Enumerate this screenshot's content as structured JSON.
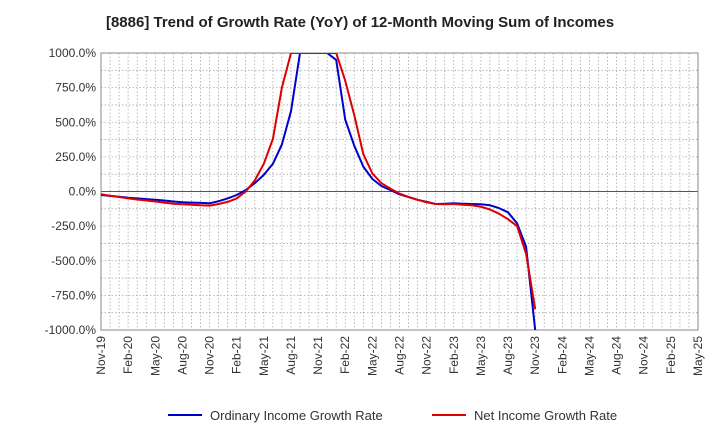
{
  "chart_data": {
    "type": "line",
    "title": "[8886]  Trend of Growth Rate (YoY) of 12-Month Moving Sum of Incomes",
    "xlabel": "",
    "ylabel": "",
    "ylim": [
      -1000,
      1000
    ],
    "yticks": [
      1000,
      750,
      500,
      250,
      0,
      -250,
      -500,
      -750,
      -1000
    ],
    "ytick_labels": [
      "1000.0%",
      "750.0%",
      "500.0%",
      "250.0%",
      "0.0%",
      "-250.0%",
      "-500.0%",
      "-750.0%",
      "-1000.0%"
    ],
    "x_tick_labels": [
      "Nov-19",
      "Feb-20",
      "May-20",
      "Aug-20",
      "Nov-20",
      "Feb-21",
      "May-21",
      "Aug-21",
      "Nov-21",
      "Feb-22",
      "May-22",
      "Aug-22",
      "Nov-22",
      "Feb-23",
      "May-23",
      "Aug-23",
      "Nov-23",
      "Feb-24",
      "May-24",
      "Aug-24",
      "Nov-24",
      "Feb-25",
      "May-25"
    ],
    "x_start": "Nov-19",
    "x_months": 66,
    "grid": true,
    "legend_position": "bottom",
    "series": [
      {
        "name": "Ordinary Income Growth Rate",
        "color": "#0000cc",
        "points": [
          [
            "Nov-19",
            -25
          ],
          [
            "Dec-19",
            -32
          ],
          [
            "Jan-20",
            -38
          ],
          [
            "Feb-20",
            -45
          ],
          [
            "Mar-20",
            -50
          ],
          [
            "Apr-20",
            -55
          ],
          [
            "May-20",
            -60
          ],
          [
            "Jun-20",
            -65
          ],
          [
            "Jul-20",
            -72
          ],
          [
            "Aug-20",
            -78
          ],
          [
            "Sep-20",
            -80
          ],
          [
            "Oct-20",
            -82
          ],
          [
            "Nov-20",
            -85
          ],
          [
            "Dec-20",
            -70
          ],
          [
            "Jan-21",
            -50
          ],
          [
            "Feb-21",
            -25
          ],
          [
            "Mar-21",
            10
          ],
          [
            "Apr-21",
            60
          ],
          [
            "May-21",
            120
          ],
          [
            "Jun-21",
            200
          ],
          [
            "Jul-21",
            340
          ],
          [
            "Aug-21",
            580
          ],
          [
            "Sep-21",
            1000
          ],
          [
            "Dec-21",
            1000
          ],
          [
            "Jan-22",
            950
          ],
          [
            "Feb-22",
            520
          ],
          [
            "Mar-22",
            330
          ],
          [
            "Apr-22",
            180
          ],
          [
            "May-22",
            90
          ],
          [
            "Jun-22",
            40
          ],
          [
            "Jul-22",
            10
          ],
          [
            "Aug-22",
            -20
          ],
          [
            "Sep-22",
            -40
          ],
          [
            "Oct-22",
            -60
          ],
          [
            "Nov-22",
            -75
          ],
          [
            "Dec-22",
            -90
          ],
          [
            "Jan-23",
            -88
          ],
          [
            "Feb-23",
            -85
          ],
          [
            "Mar-23",
            -88
          ],
          [
            "Apr-23",
            -90
          ],
          [
            "May-23",
            -92
          ],
          [
            "Jun-23",
            -100
          ],
          [
            "Jul-23",
            -120
          ],
          [
            "Aug-23",
            -150
          ],
          [
            "Sep-23",
            -230
          ],
          [
            "Oct-23",
            -400
          ],
          [
            "Nov-23",
            -1000
          ]
        ]
      },
      {
        "name": "Net Income Growth Rate",
        "color": "#dd0000",
        "points": [
          [
            "Nov-19",
            -20
          ],
          [
            "Dec-19",
            -30
          ],
          [
            "Jan-20",
            -40
          ],
          [
            "Feb-20",
            -50
          ],
          [
            "Mar-20",
            -58
          ],
          [
            "Apr-20",
            -65
          ],
          [
            "May-20",
            -72
          ],
          [
            "Jun-20",
            -80
          ],
          [
            "Jul-20",
            -88
          ],
          [
            "Aug-20",
            -92
          ],
          [
            "Sep-20",
            -96
          ],
          [
            "Oct-20",
            -100
          ],
          [
            "Nov-20",
            -102
          ],
          [
            "Dec-20",
            -90
          ],
          [
            "Jan-21",
            -75
          ],
          [
            "Feb-21",
            -50
          ],
          [
            "Mar-21",
            0
          ],
          [
            "Apr-21",
            80
          ],
          [
            "May-21",
            200
          ],
          [
            "Jun-21",
            380
          ],
          [
            "Jul-21",
            750
          ],
          [
            "Aug-21",
            1000
          ],
          [
            "Jan-22",
            1000
          ],
          [
            "Feb-22",
            800
          ],
          [
            "Mar-22",
            550
          ],
          [
            "Apr-22",
            270
          ],
          [
            "May-22",
            130
          ],
          [
            "Jun-22",
            60
          ],
          [
            "Jul-22",
            20
          ],
          [
            "Aug-22",
            -15
          ],
          [
            "Sep-22",
            -40
          ],
          [
            "Oct-22",
            -60
          ],
          [
            "Nov-22",
            -78
          ],
          [
            "Dec-22",
            -90
          ],
          [
            "Jan-23",
            -92
          ],
          [
            "Feb-23",
            -90
          ],
          [
            "Mar-23",
            -95
          ],
          [
            "Apr-23",
            -100
          ],
          [
            "May-23",
            -110
          ],
          [
            "Jun-23",
            -130
          ],
          [
            "Jul-23",
            -160
          ],
          [
            "Aug-23",
            -200
          ],
          [
            "Sep-23",
            -250
          ],
          [
            "Oct-23",
            -450
          ],
          [
            "Nov-23",
            -850
          ]
        ]
      }
    ]
  }
}
